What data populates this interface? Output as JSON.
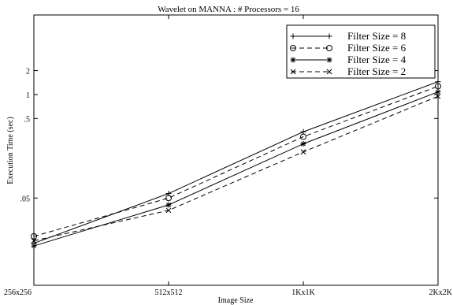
{
  "chart_data": {
    "type": "line",
    "title": "Wavelet on MANNA  : # Processors = 16",
    "xlabel": "Image Size",
    "ylabel": "Execution Time (sec)",
    "x_categories": [
      "256x256",
      "512x512",
      "1Kx1K",
      "2Kx2K"
    ],
    "y_scale": "log",
    "y_range": [
      0.004,
      10
    ],
    "y_ticks": [
      {
        "value": 0.05,
        "label": ".05"
      },
      {
        "value": 0.5,
        "label": ".5"
      },
      {
        "value": 1,
        "label": "1"
      },
      {
        "value": 2,
        "label": "2"
      }
    ],
    "grid": false,
    "legend_position": "top-right",
    "series": [
      {
        "name": "Filter Size = 8",
        "marker": "plus",
        "dash": "solid",
        "values": [
          0.0135,
          0.057,
          0.34,
          1.45
        ]
      },
      {
        "name": "Filter Size = 6",
        "marker": "circle",
        "dash": "dashed",
        "values": [
          0.0165,
          0.05,
          0.295,
          1.27
        ]
      },
      {
        "name": "Filter Size = 4",
        "marker": "asterisk",
        "dash": "solid",
        "values": [
          0.0125,
          0.041,
          0.24,
          1.08
        ]
      },
      {
        "name": "Filter Size = 2",
        "marker": "x",
        "dash": "dashed",
        "values": [
          0.0145,
          0.035,
          0.19,
          0.95
        ]
      }
    ]
  }
}
